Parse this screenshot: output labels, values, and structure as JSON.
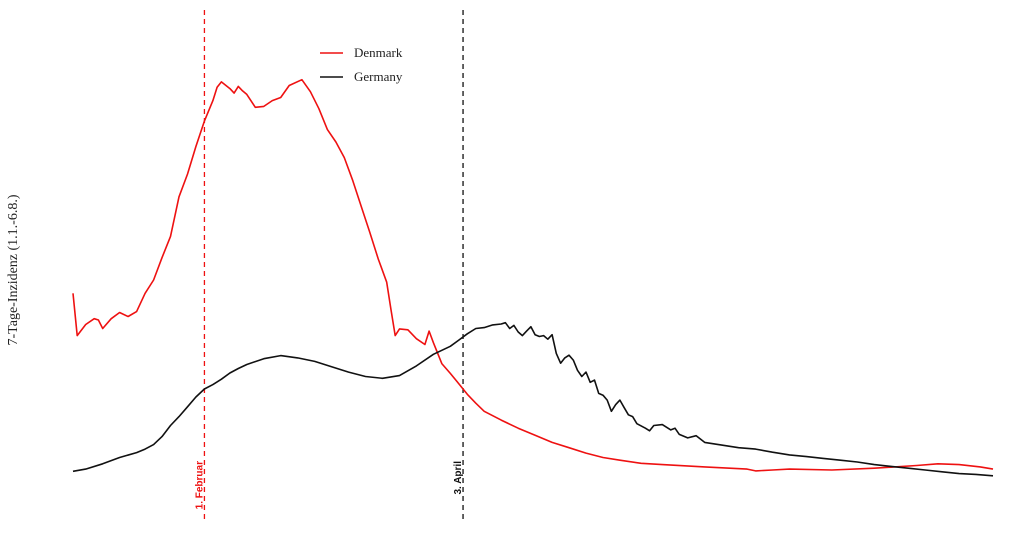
{
  "chart_data": {
    "type": "line",
    "ylabel": "7-Tage-Inzidenz (1.1.-6.8.)",
    "xlabel": "",
    "x_days_range": [
      1,
      218
    ],
    "ylim": [
      0,
      1000
    ],
    "grid": false,
    "legend_position": "top-center",
    "series": [
      {
        "name": "Denmark",
        "color": "#ee1111",
        "points": [
          [
            1,
            415
          ],
          [
            2,
            320
          ],
          [
            4,
            345
          ],
          [
            6,
            358
          ],
          [
            7,
            355
          ],
          [
            8,
            336
          ],
          [
            10,
            358
          ],
          [
            12,
            372
          ],
          [
            14,
            363
          ],
          [
            16,
            374
          ],
          [
            18,
            415
          ],
          [
            20,
            445
          ],
          [
            22,
            495
          ],
          [
            24,
            543
          ],
          [
            26,
            632
          ],
          [
            28,
            683
          ],
          [
            30,
            745
          ],
          [
            32,
            802
          ],
          [
            34,
            848
          ],
          [
            35,
            878
          ],
          [
            36,
            890
          ],
          [
            38,
            875
          ],
          [
            39,
            865
          ],
          [
            40,
            880
          ],
          [
            41,
            870
          ],
          [
            42,
            862
          ],
          [
            44,
            833
          ],
          [
            46,
            835
          ],
          [
            48,
            848
          ],
          [
            50,
            855
          ],
          [
            52,
            882
          ],
          [
            55,
            895
          ],
          [
            57,
            868
          ],
          [
            59,
            830
          ],
          [
            61,
            783
          ],
          [
            63,
            755
          ],
          [
            65,
            720
          ],
          [
            67,
            668
          ],
          [
            69,
            610
          ],
          [
            71,
            552
          ],
          [
            73,
            492
          ],
          [
            75,
            440
          ],
          [
            76,
            378
          ],
          [
            77,
            320
          ],
          [
            78,
            335
          ],
          [
            80,
            333
          ],
          [
            82,
            313
          ],
          [
            84,
            300
          ],
          [
            85,
            330
          ],
          [
            86,
            304
          ],
          [
            88,
            257
          ],
          [
            90,
            235
          ],
          [
            92,
            212
          ],
          [
            94,
            188
          ],
          [
            96,
            168
          ],
          [
            98,
            150
          ],
          [
            102,
            130
          ],
          [
            106,
            112
          ],
          [
            110,
            96
          ],
          [
            114,
            80
          ],
          [
            118,
            68
          ],
          [
            122,
            56
          ],
          [
            126,
            46
          ],
          [
            130,
            40
          ],
          [
            135,
            33
          ],
          [
            140,
            30
          ],
          [
            150,
            25
          ],
          [
            160,
            20
          ],
          [
            162,
            16
          ],
          [
            166,
            18
          ],
          [
            170,
            20
          ],
          [
            180,
            18
          ],
          [
            190,
            22
          ],
          [
            200,
            28
          ],
          [
            205,
            32
          ],
          [
            210,
            30
          ],
          [
            215,
            25
          ],
          [
            218,
            20
          ]
        ]
      },
      {
        "name": "Germany",
        "color": "#111111",
        "points": [
          [
            1,
            15
          ],
          [
            4,
            20
          ],
          [
            8,
            32
          ],
          [
            12,
            46
          ],
          [
            16,
            57
          ],
          [
            18,
            65
          ],
          [
            20,
            75
          ],
          [
            22,
            93
          ],
          [
            24,
            118
          ],
          [
            26,
            138
          ],
          [
            28,
            160
          ],
          [
            30,
            182
          ],
          [
            32,
            200
          ],
          [
            34,
            210
          ],
          [
            36,
            222
          ],
          [
            38,
            236
          ],
          [
            40,
            246
          ],
          [
            42,
            255
          ],
          [
            46,
            268
          ],
          [
            50,
            275
          ],
          [
            54,
            270
          ],
          [
            58,
            262
          ],
          [
            62,
            250
          ],
          [
            66,
            238
          ],
          [
            70,
            228
          ],
          [
            74,
            224
          ],
          [
            78,
            230
          ],
          [
            82,
            252
          ],
          [
            86,
            278
          ],
          [
            90,
            296
          ],
          [
            92,
            310
          ],
          [
            94,
            324
          ],
          [
            96,
            336
          ],
          [
            98,
            338
          ],
          [
            100,
            344
          ],
          [
            102,
            346
          ],
          [
            103,
            349
          ],
          [
            104,
            336
          ],
          [
            105,
            343
          ],
          [
            106,
            328
          ],
          [
            107,
            320
          ],
          [
            108,
            330
          ],
          [
            109,
            340
          ],
          [
            110,
            322
          ],
          [
            111,
            318
          ],
          [
            112,
            320
          ],
          [
            113,
            312
          ],
          [
            114,
            322
          ],
          [
            115,
            280
          ],
          [
            116,
            258
          ],
          [
            117,
            270
          ],
          [
            118,
            276
          ],
          [
            119,
            265
          ],
          [
            120,
            242
          ],
          [
            121,
            228
          ],
          [
            122,
            238
          ],
          [
            123,
            215
          ],
          [
            124,
            220
          ],
          [
            125,
            190
          ],
          [
            126,
            186
          ],
          [
            127,
            175
          ],
          [
            128,
            150
          ],
          [
            129,
            165
          ],
          [
            130,
            175
          ],
          [
            131,
            158
          ],
          [
            132,
            142
          ],
          [
            133,
            138
          ],
          [
            134,
            122
          ],
          [
            136,
            112
          ],
          [
            137,
            106
          ],
          [
            138,
            118
          ],
          [
            140,
            120
          ],
          [
            142,
            108
          ],
          [
            143,
            112
          ],
          [
            144,
            98
          ],
          [
            146,
            90
          ],
          [
            148,
            95
          ],
          [
            150,
            80
          ],
          [
            154,
            74
          ],
          [
            158,
            68
          ],
          [
            162,
            65
          ],
          [
            166,
            58
          ],
          [
            170,
            52
          ],
          [
            174,
            48
          ],
          [
            178,
            44
          ],
          [
            182,
            40
          ],
          [
            186,
            36
          ],
          [
            190,
            30
          ],
          [
            194,
            26
          ],
          [
            198,
            22
          ],
          [
            202,
            18
          ],
          [
            206,
            14
          ],
          [
            210,
            10
          ],
          [
            214,
            8
          ],
          [
            218,
            5
          ]
        ]
      }
    ],
    "markers": [
      {
        "label": "1. Februar",
        "color": "#ee1111",
        "day": 32
      },
      {
        "label": "3. April",
        "color": "#111111",
        "day": 93
      }
    ]
  }
}
